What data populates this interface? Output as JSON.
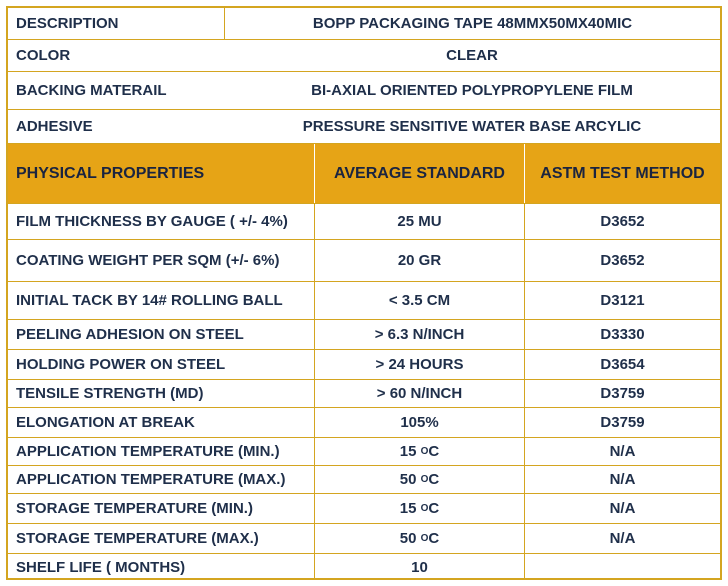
{
  "info": [
    {
      "label": "DESCRIPTION",
      "value": "BOPP PACKAGING TAPE 48MMX50MX40MIC"
    },
    {
      "label": "COLOR",
      "value": "CLEAR"
    },
    {
      "label": "BACKING MATERAIL",
      "value": "BI-AXIAL ORIENTED POLYPROPYLENE FILM"
    },
    {
      "label": "ADHESIVE",
      "value": "PRESSURE SENSITIVE WATER BASE ARCYLIC"
    }
  ],
  "header": {
    "col1": "PHYSICAL PROPERTIES",
    "col2": "AVERAGE STANDARD",
    "col3": "ASTM TEST METHOD"
  },
  "properties": [
    {
      "name": "FILM THICKNESS BY GAUGE ( +/- 4%)",
      "value": "25 MU",
      "method": "D3652"
    },
    {
      "name": "COATING WEIGHT PER SQM (+/- 6%)",
      "value": "20 GR",
      "method": "D3652"
    },
    {
      "name": "INITIAL TACK BY 14# ROLLING BALL",
      "value": "< 3.5 CM",
      "method": "D3121"
    },
    {
      "name": "PEELING ADHESION ON STEEL",
      "value": "> 6.3 N/INCH",
      "method": "D3330"
    },
    {
      "name": "HOLDING POWER ON STEEL",
      "value": "> 24 HOURS",
      "method": "D3654"
    },
    {
      "name": "TENSILE STRENGTH (MD)",
      "value": "> 60 N/INCH",
      "method": "D3759"
    },
    {
      "name": "ELONGATION AT BREAK",
      "value": "105%",
      "method": "D3759"
    },
    {
      "name": "APPLICATION TEMPERATURE (MIN.)",
      "value": "15",
      "unit_sup": "O",
      "unit": "C",
      "method": "N/A"
    },
    {
      "name": "APPLICATION TEMPERATURE (MAX.)",
      "value": "50",
      "unit_sup": "O",
      "unit": "C",
      "method": "N/A"
    },
    {
      "name": "STORAGE TEMPERATURE (MIN.)",
      "value": "15",
      "unit_sup": "O",
      "unit": "C",
      "method": "N/A"
    },
    {
      "name": "STORAGE TEMPERATURE (MAX.)",
      "value": "50",
      "unit_sup": "O",
      "unit": "C",
      "method": "N/A"
    },
    {
      "name": "SHELF LIFE ( MONTHS)",
      "value": "10",
      "method": ""
    }
  ]
}
